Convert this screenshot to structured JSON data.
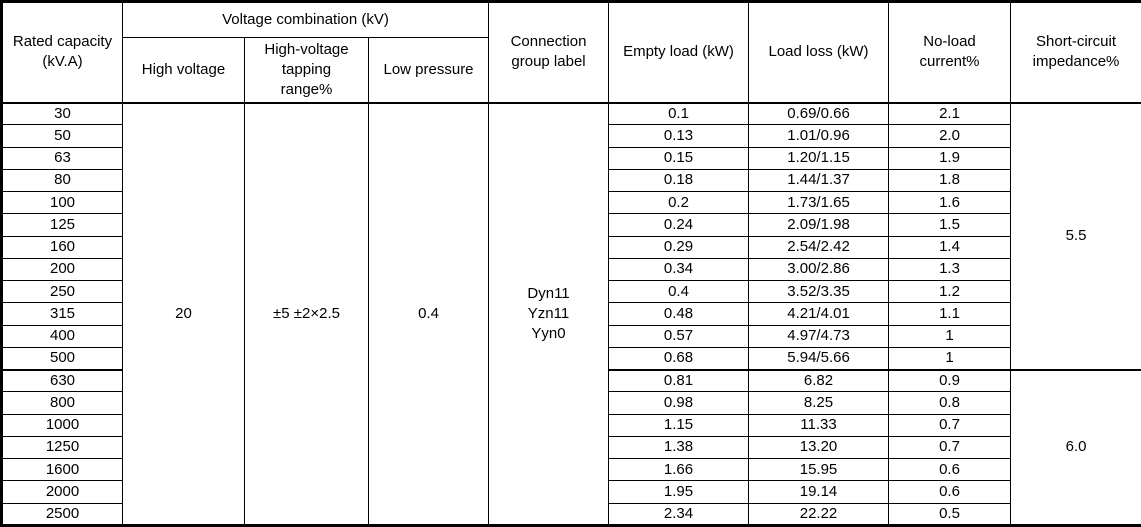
{
  "table": {
    "headers": {
      "rated_capacity": "Rated capacity\n(kV.A)",
      "voltage_combination": "Voltage combination  (kV)",
      "high_voltage": "High voltage",
      "tapping_range": "High-voltage\ntapping\nrange%",
      "low_pressure": "Low pressure",
      "connection_group": "Connection\ngroup label",
      "empty_load": "Empty load  (kW)",
      "load_loss": "Load loss  (kW)",
      "no_load_current": "No-load\ncurrent%",
      "short_circuit_impedance": "Short-circuit\nimpedance%"
    },
    "merged": {
      "high_voltage": "20",
      "tapping_range": "±5 ±2×2.5",
      "low_pressure": "0.4",
      "connection_group": "Dyn11\nYzn11\nYyn0"
    },
    "impedance_groups": [
      {
        "value": "5.5",
        "row_span": 12
      },
      {
        "value": "6.0",
        "row_span": 7
      }
    ],
    "rows": [
      {
        "capacity": "30",
        "empty_load": "0.1",
        "load_loss": "0.69/0.66",
        "no_load_current": "2.1"
      },
      {
        "capacity": "50",
        "empty_load": "0.13",
        "load_loss": "1.01/0.96",
        "no_load_current": "2.0"
      },
      {
        "capacity": "63",
        "empty_load": "0.15",
        "load_loss": "1.20/1.15",
        "no_load_current": "1.9"
      },
      {
        "capacity": "80",
        "empty_load": "0.18",
        "load_loss": "1.44/1.37",
        "no_load_current": "1.8"
      },
      {
        "capacity": "100",
        "empty_load": "0.2",
        "load_loss": "1.73/1.65",
        "no_load_current": "1.6"
      },
      {
        "capacity": "125",
        "empty_load": "0.24",
        "load_loss": "2.09/1.98",
        "no_load_current": "1.5"
      },
      {
        "capacity": "160",
        "empty_load": "0.29",
        "load_loss": "2.54/2.42",
        "no_load_current": "1.4"
      },
      {
        "capacity": "200",
        "empty_load": "0.34",
        "load_loss": "3.00/2.86",
        "no_load_current": "1.3"
      },
      {
        "capacity": "250",
        "empty_load": "0.4",
        "load_loss": "3.52/3.35",
        "no_load_current": "1.2"
      },
      {
        "capacity": "315",
        "empty_load": "0.48",
        "load_loss": "4.21/4.01",
        "no_load_current": "1.1"
      },
      {
        "capacity": "400",
        "empty_load": "0.57",
        "load_loss": "4.97/4.73",
        "no_load_current": "1"
      },
      {
        "capacity": "500",
        "empty_load": "0.68",
        "load_loss": "5.94/5.66",
        "no_load_current": "1"
      },
      {
        "capacity": "630",
        "empty_load": "0.81",
        "load_loss": "6.82",
        "no_load_current": "0.9"
      },
      {
        "capacity": "800",
        "empty_load": "0.98",
        "load_loss": "8.25",
        "no_load_current": "0.8"
      },
      {
        "capacity": "1000",
        "empty_load": "1.15",
        "load_loss": "11.33",
        "no_load_current": "0.7"
      },
      {
        "capacity": "1250",
        "empty_load": "1.38",
        "load_loss": "13.20",
        "no_load_current": "0.7"
      },
      {
        "capacity": "1600",
        "empty_load": "1.66",
        "load_loss": "15.95",
        "no_load_current": "0.6"
      },
      {
        "capacity": "2000",
        "empty_load": "1.95",
        "load_loss": "19.14",
        "no_load_current": "0.6"
      },
      {
        "capacity": "2500",
        "empty_load": "2.34",
        "load_loss": "22.22",
        "no_load_current": "0.5"
      }
    ]
  },
  "colors": {
    "border": "#000000",
    "text": "#000000",
    "background": "#ffffff"
  }
}
